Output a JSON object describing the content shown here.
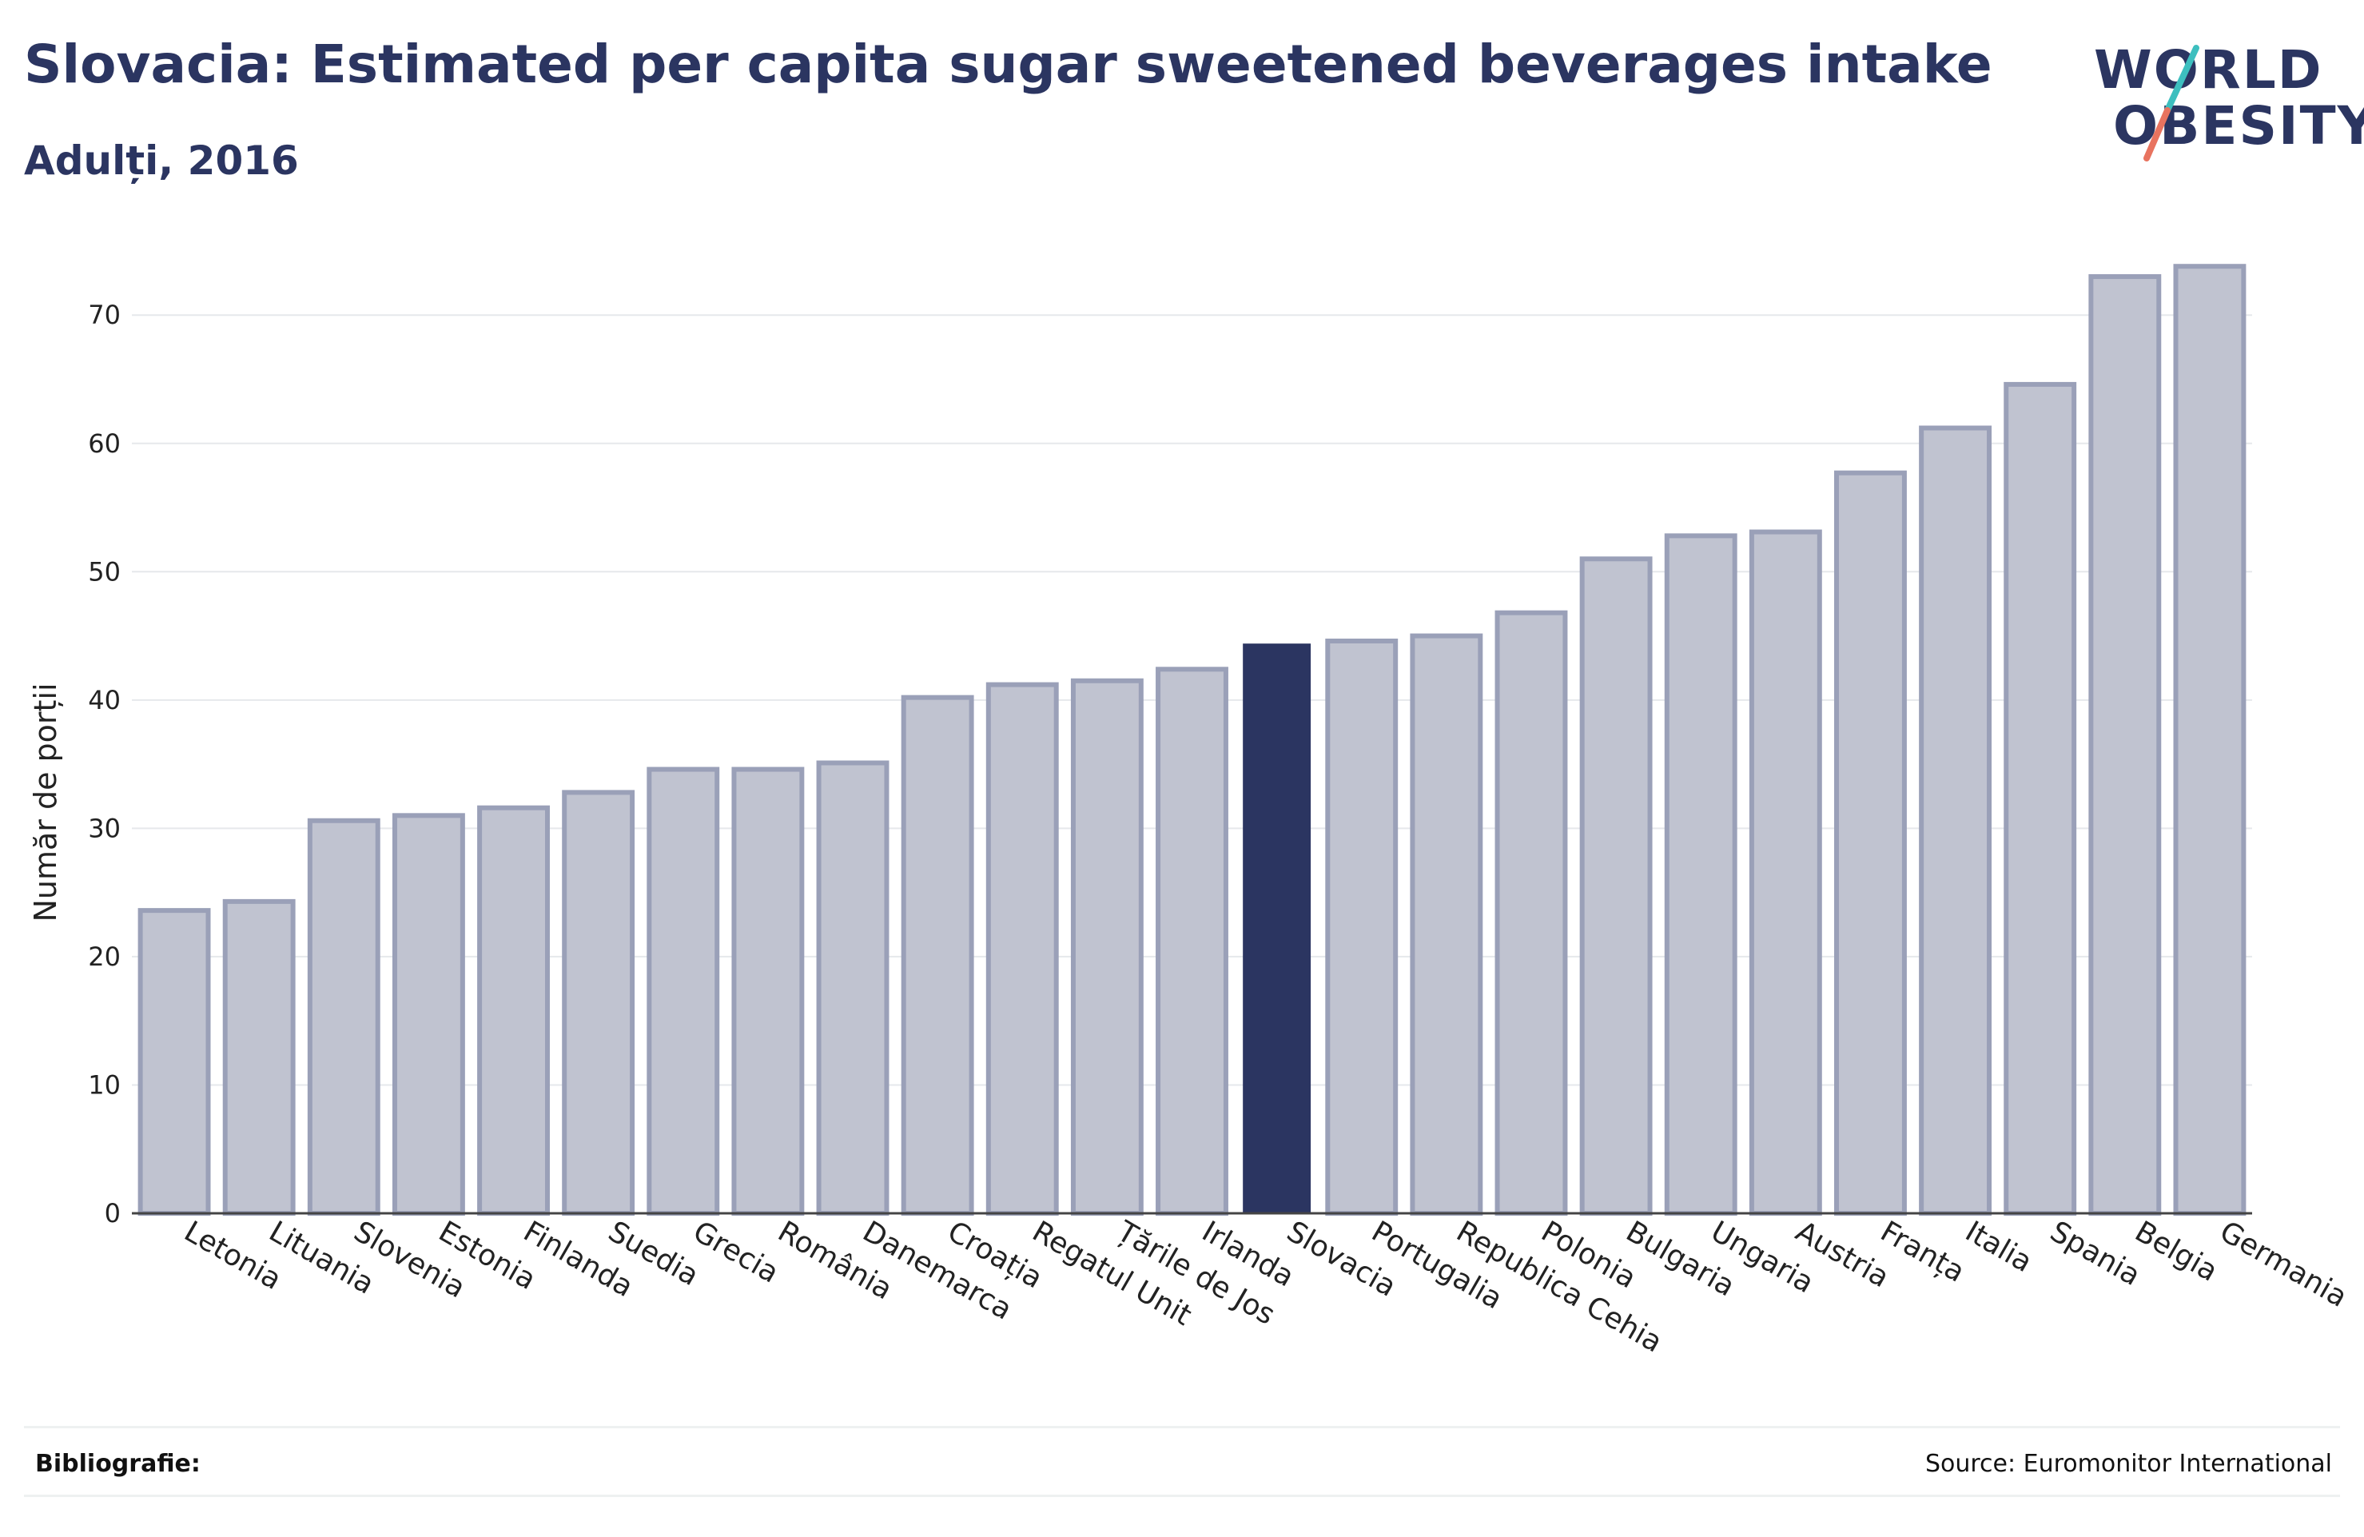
{
  "header": {
    "title": "Slovacia: Estimated per capita sugar sweetened beverages intake",
    "subtitle": "Adulți, 2016"
  },
  "logo": {
    "line1": "WORLD",
    "line2": "OBESITY"
  },
  "footer": {
    "bibliography_label": "Bibliografie:",
    "source": "Source: Euromonitor International"
  },
  "colors": {
    "bar_default": "#c0c3d0",
    "bar_default_edge": "#9aa0b8",
    "bar_highlight": "#2b3561",
    "text": "#2b3561",
    "grid": "#e6e8ec",
    "logo_teal": "#3dbfbf",
    "logo_coral": "#e8735f"
  },
  "chart_data": {
    "type": "bar",
    "ylabel": "Număr de porții",
    "xlabel": "",
    "ylim": [
      0,
      74
    ],
    "yticks": [
      0,
      10,
      20,
      30,
      40,
      50,
      60,
      70
    ],
    "grid": true,
    "highlight": "Slovacia",
    "categories": [
      "Letonia",
      "Lituania",
      "Slovenia",
      "Estonia",
      "Finlanda",
      "Suedia",
      "Grecia",
      "România",
      "Danemarca",
      "Croația",
      "Regatul Unit",
      "Țările de Jos",
      "Irlanda",
      "Slovacia",
      "Portugalia",
      "Republica Cehia",
      "Polonia",
      "Bulgaria",
      "Ungaria",
      "Austria",
      "Franța",
      "Italia",
      "Spania",
      "Belgia",
      "Germania"
    ],
    "values": [
      23.6,
      24.3,
      30.6,
      31.0,
      31.6,
      32.8,
      34.6,
      34.6,
      35.1,
      40.2,
      41.2,
      41.5,
      42.4,
      44.4,
      44.6,
      45.0,
      46.8,
      51.0,
      52.8,
      53.1,
      57.7,
      61.2,
      64.6,
      73.0,
      73.8
    ]
  }
}
